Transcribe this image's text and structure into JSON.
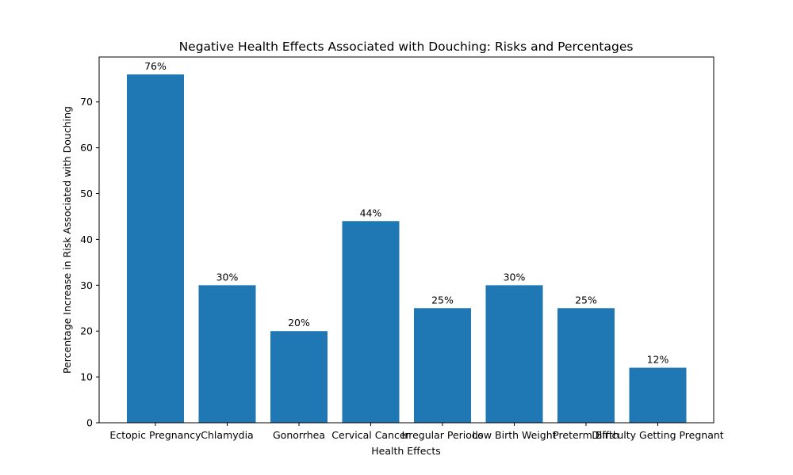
{
  "chart_data": {
    "type": "bar",
    "title": "Negative Health Effects Associated with Douching: Risks and Percentages",
    "xlabel": "Health Effects",
    "ylabel": "Percentage Increase in Risk Associated with Douching",
    "categories": [
      "Ectopic Pregnancy",
      "Chlamydia",
      "Gonorrhea",
      "Cervical Cancer",
      "Irregular Periods",
      "Low Birth Weight",
      "Preterm Birth",
      "Difficulty Getting Pregnant"
    ],
    "values": [
      76,
      30,
      20,
      44,
      25,
      30,
      25,
      12
    ],
    "value_labels": [
      "76%",
      "30%",
      "20%",
      "44%",
      "25%",
      "30%",
      "25%",
      "12%"
    ],
    "yticks": [
      "0",
      "10",
      "20",
      "30",
      "40",
      "50",
      "60",
      "70"
    ],
    "ylim": [
      0,
      79.8
    ],
    "bar_color": "#1f77b4",
    "grid": false,
    "legend": "none"
  }
}
